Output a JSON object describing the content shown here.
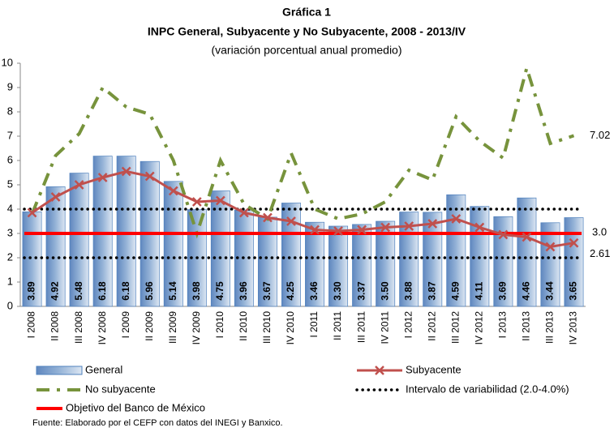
{
  "chart_data": {
    "type": "bar-line",
    "title": "Gráfica 1",
    "subtitle": "INPC General, Subyacente y No Subyacente, 2008 - 2013/IV",
    "y_label": "(variación porcentual anual promedio)",
    "source": "Fuente: Elaborado por el CEFP con datos del INEGI y Banxico.",
    "categories": [
      "I 2008",
      "II 2008",
      "III 2008",
      "IV 2008",
      "I 2009",
      "II 2009",
      "III 2009",
      "IV 2009",
      "I 2010",
      "II 2010",
      "III 2010",
      "IV 2010",
      "I 2011",
      "II 2011",
      "III 2011",
      "IV 2011",
      "I 2012",
      "II 2012",
      "III 2012",
      "IV 2012",
      "I 2013",
      "II 2013",
      "III 2013",
      "IV 2013"
    ],
    "series": [
      {
        "name": "General",
        "kind": "bar",
        "color": "#95b3d7",
        "values": [
          3.89,
          4.92,
          5.48,
          6.18,
          6.18,
          5.96,
          5.14,
          3.98,
          4.75,
          3.96,
          3.67,
          4.25,
          3.46,
          3.3,
          3.37,
          3.5,
          3.88,
          3.87,
          4.59,
          4.11,
          3.69,
          4.46,
          3.44,
          3.65
        ],
        "value_labels": [
          "3.89",
          "4.92",
          "5.48",
          "6.18",
          "6.18",
          "5.96",
          "5.14",
          "3.98",
          "4.75",
          "3.96",
          "3.67",
          "4.25",
          "3.46",
          "3.30",
          "3.37",
          "3.50",
          "3.88",
          "3.87",
          "4.59",
          "4.11",
          "3.69",
          "4.46",
          "3.44",
          "3.65"
        ]
      },
      {
        "name": "Subyacente",
        "kind": "line-marker",
        "color": "#c0504d",
        "values": [
          3.85,
          4.5,
          5.0,
          5.3,
          5.55,
          5.35,
          4.75,
          4.3,
          4.35,
          3.85,
          3.65,
          3.5,
          3.15,
          3.1,
          3.15,
          3.25,
          3.3,
          3.4,
          3.6,
          3.25,
          2.95,
          2.85,
          2.45,
          2.61
        ]
      },
      {
        "name": "No subyacente",
        "kind": "dash-line",
        "color": "#77933c",
        "values": [
          3.8,
          6.2,
          7.1,
          9.0,
          8.2,
          7.9,
          6.0,
          3.0,
          6.0,
          4.2,
          3.6,
          6.3,
          4.0,
          3.6,
          3.8,
          4.3,
          5.6,
          5.2,
          7.8,
          6.8,
          6.1,
          9.8,
          6.7,
          7.02
        ]
      }
    ],
    "interval": {
      "name": "Intervalo de variabilidad (2.0-4.0%)",
      "values": [
        2,
        4
      ],
      "color": "#000000"
    },
    "target": {
      "name": "Objetivo del Banco de México",
      "value": 3,
      "label": "3.0",
      "color": "#ff0000"
    },
    "ylim": [
      0,
      10
    ],
    "yticks": [
      0,
      1,
      2,
      3,
      4,
      5,
      6,
      7,
      8,
      9,
      10
    ]
  }
}
